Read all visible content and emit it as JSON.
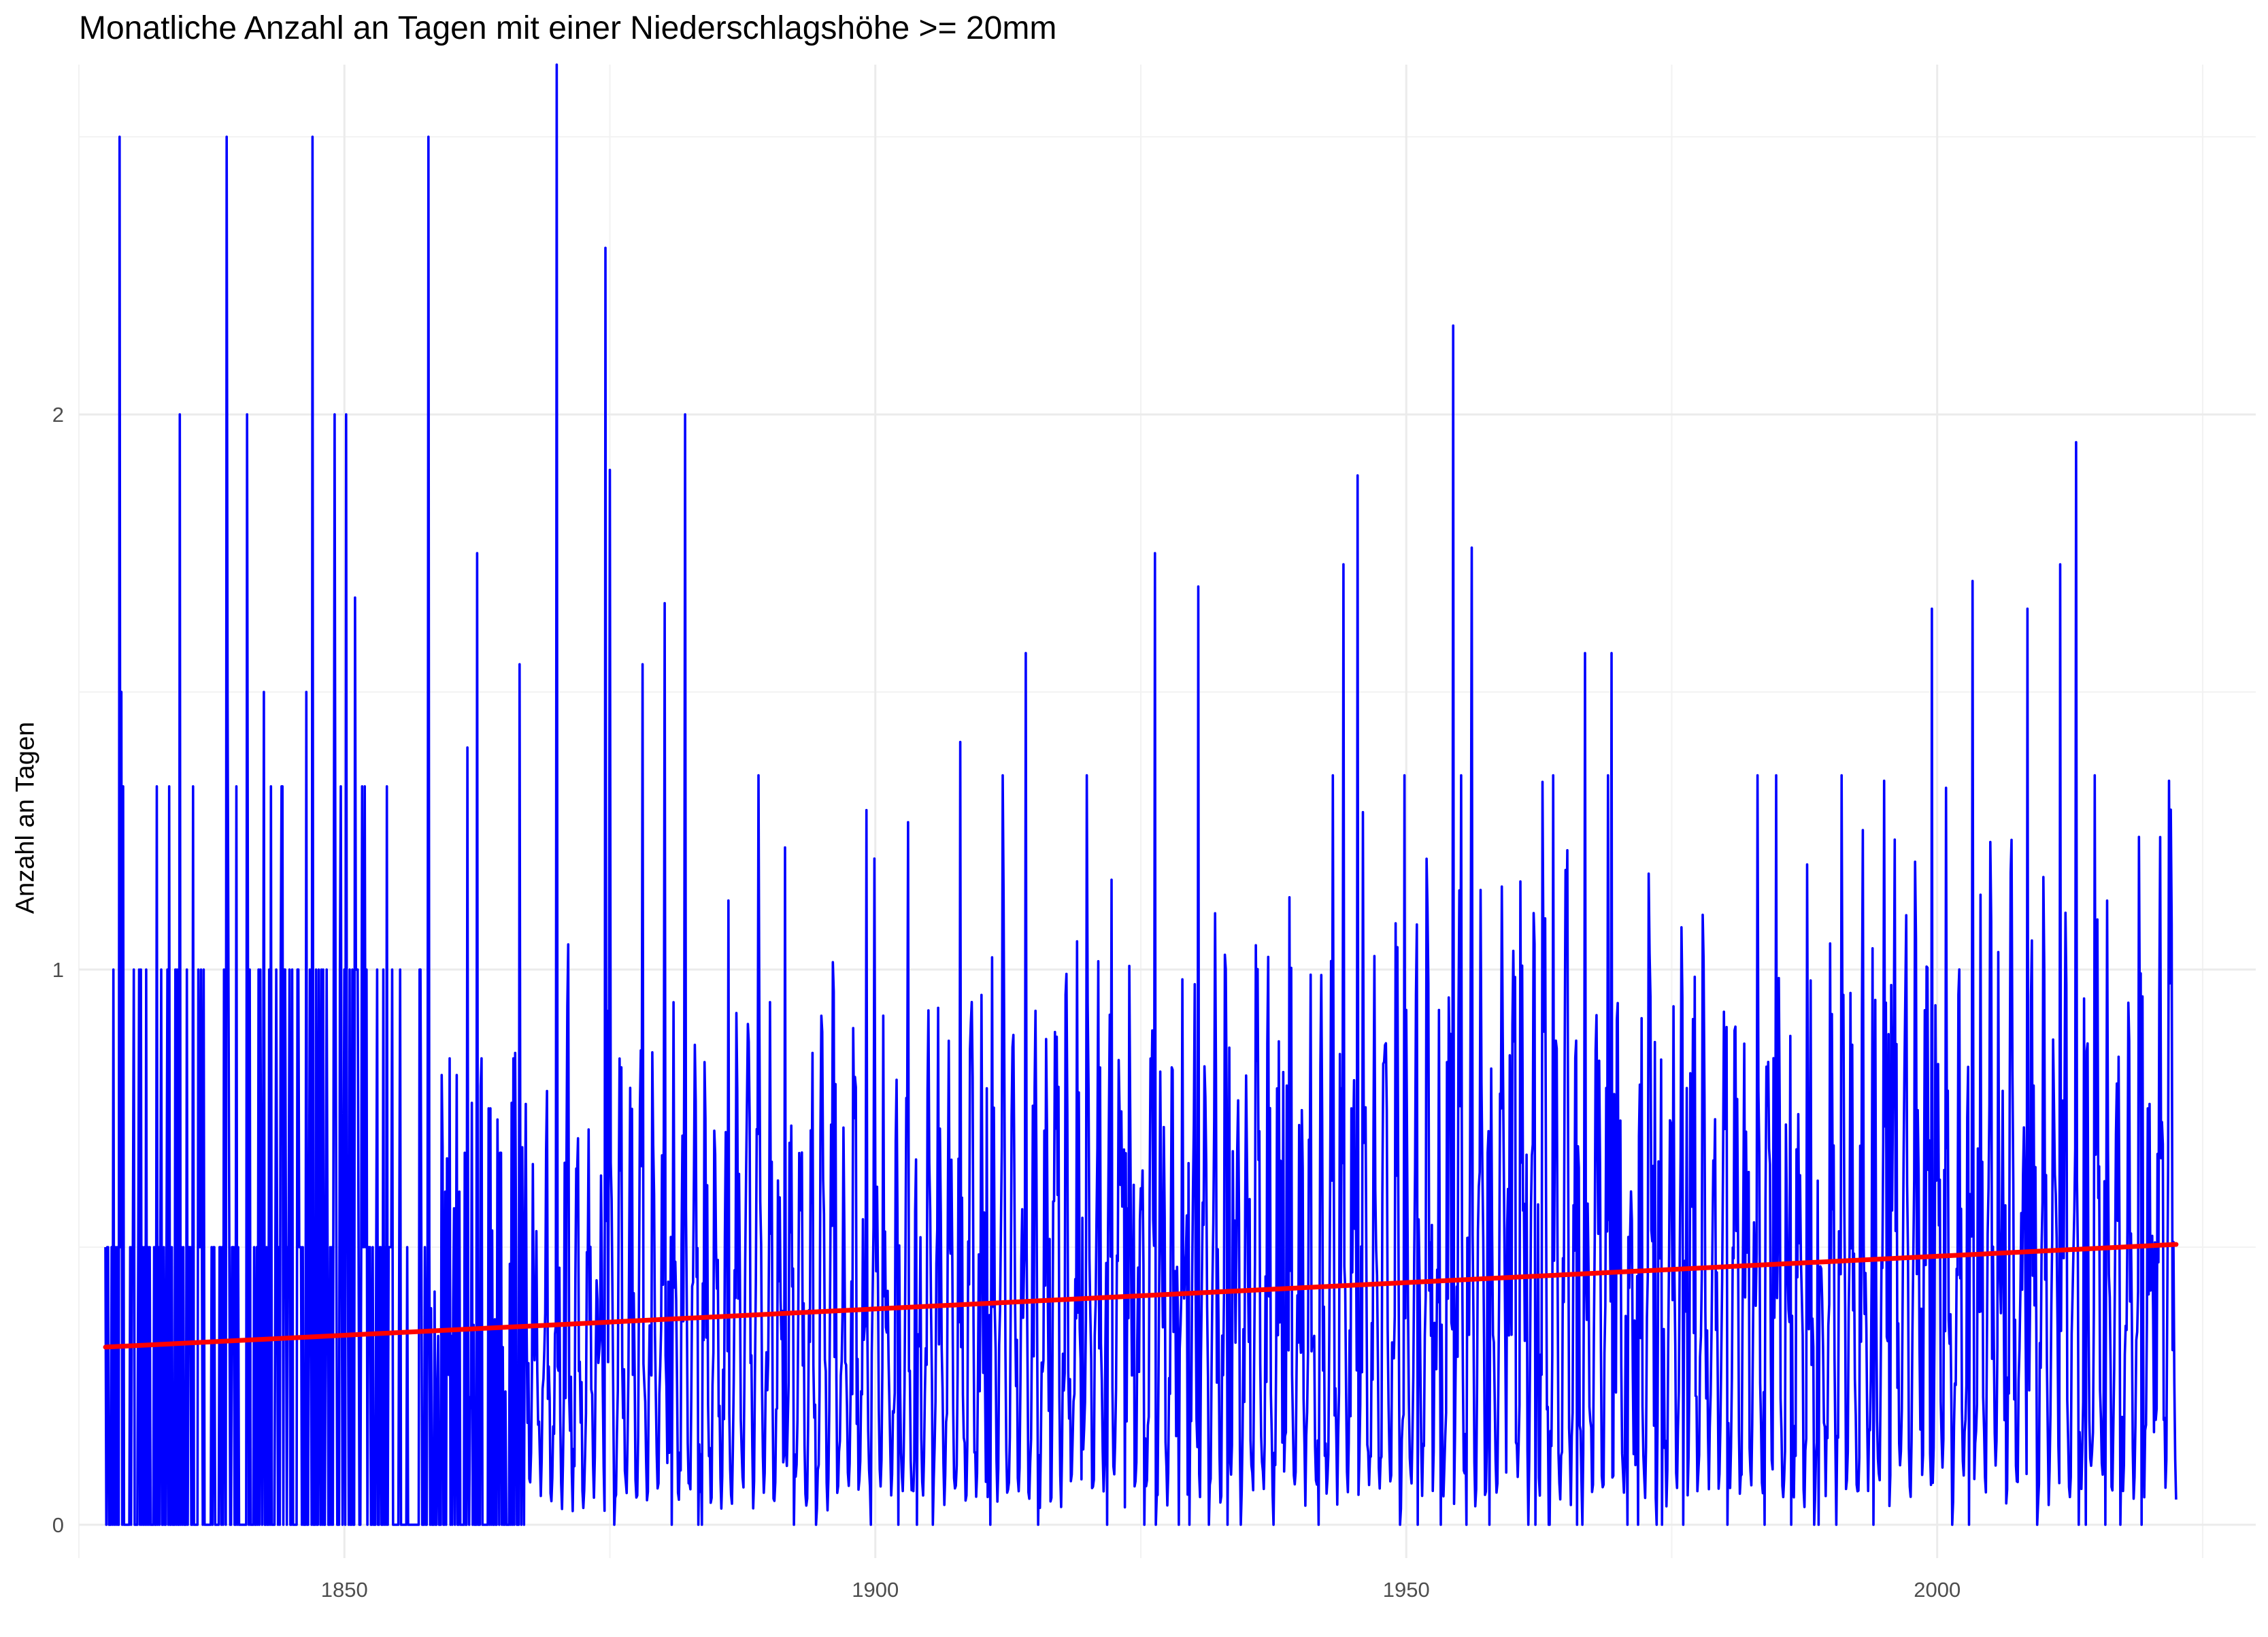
{
  "chart_data": {
    "type": "line",
    "title": "Monatliche Anzahl an Tagen mit einer Niederschlagshöhe >= 20mm",
    "xlabel": "",
    "ylabel": "Anzahl an Tagen",
    "xlim": [
      1825,
      2030
    ],
    "ylim": [
      -0.06,
      2.63
    ],
    "x_ticks": [
      1850,
      1900,
      1950,
      2000
    ],
    "y_ticks": [
      0,
      1,
      2
    ],
    "grid": true,
    "legend": "none",
    "series": [
      {
        "color": "#0000ff",
        "x_start": 1827.5,
        "x_step_months": 1,
        "peaks": [
          {
            "x": 1828.8,
            "y": 2.5
          },
          {
            "x": 1838.9,
            "y": 2.5
          },
          {
            "x": 1847.0,
            "y": 2.5
          },
          {
            "x": 1857.9,
            "y": 2.5
          },
          {
            "x": 1870.0,
            "y": 2.63
          },
          {
            "x": 1874.6,
            "y": 2.3
          },
          {
            "x": 1834.5,
            "y": 2.0
          },
          {
            "x": 1840.8,
            "y": 2.0
          },
          {
            "x": 1849.1,
            "y": 2.0
          },
          {
            "x": 1850.2,
            "y": 2.0
          },
          {
            "x": 1882.1,
            "y": 2.0
          },
          {
            "x": 1954.4,
            "y": 2.16
          },
          {
            "x": 2013.1,
            "y": 1.95
          },
          {
            "x": 1945.4,
            "y": 1.89
          },
          {
            "x": 1875.0,
            "y": 1.9
          },
          {
            "x": 1926.3,
            "y": 1.75
          },
          {
            "x": 1944.1,
            "y": 1.73
          },
          {
            "x": 1956.2,
            "y": 1.76
          },
          {
            "x": 1930.4,
            "y": 1.69
          },
          {
            "x": 2003.3,
            "y": 1.7
          },
          {
            "x": 2011.6,
            "y": 1.73
          },
          {
            "x": 2008.5,
            "y": 1.65
          },
          {
            "x": 1999.5,
            "y": 1.65
          },
          {
            "x": 1862.5,
            "y": 1.75
          },
          {
            "x": 1851.0,
            "y": 1.67
          },
          {
            "x": 1880.2,
            "y": 1.66
          },
          {
            "x": 1878.1,
            "y": 1.55
          },
          {
            "x": 1914.2,
            "y": 1.57
          },
          {
            "x": 1966.8,
            "y": 1.57
          },
          {
            "x": 1969.3,
            "y": 1.57
          },
          {
            "x": 1866.5,
            "y": 1.55
          },
          {
            "x": 1908.0,
            "y": 1.41
          },
          {
            "x": 1995.0,
            "y": 1.34
          },
          {
            "x": 2021.8,
            "y": 1.34
          },
          {
            "x": 1829.0,
            "y": 1.5
          },
          {
            "x": 1842.4,
            "y": 1.5
          },
          {
            "x": 1846.4,
            "y": 1.5
          },
          {
            "x": 1854.0,
            "y": 1.33
          },
          {
            "x": 1839.0,
            "y": 1.5
          },
          {
            "x": 1861.6,
            "y": 1.4
          },
          {
            "x": 1891.5,
            "y": 1.22
          },
          {
            "x": 1899.9,
            "y": 1.2
          }
        ]
      },
      {
        "color": "#ff0000",
        "x": [
          1827.5,
          2022.5
        ],
        "y": [
          0.32,
          0.505
        ]
      }
    ]
  }
}
